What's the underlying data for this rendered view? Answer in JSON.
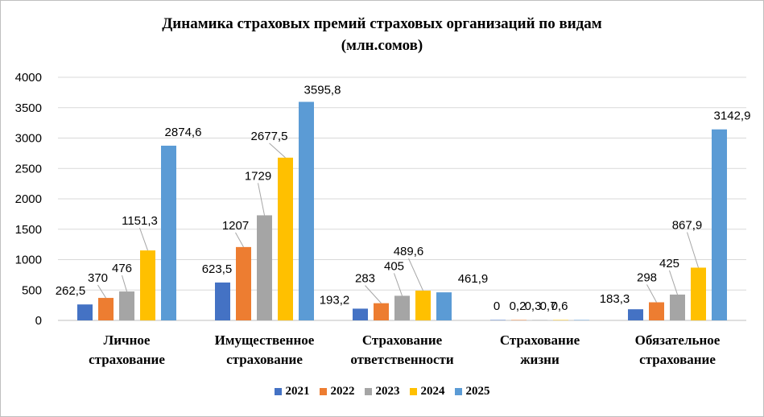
{
  "chart_data": {
    "type": "bar",
    "title": "Динамика страховых премий страховых организаций по видам",
    "subtitle": "(млн.сомов)",
    "categories": [
      [
        "Личное",
        "страхование"
      ],
      [
        "Имущественное",
        "страхование"
      ],
      [
        "Страхование",
        "ответственности"
      ],
      [
        "Страхование",
        "жизни"
      ],
      [
        "Обязательное",
        "страхование"
      ]
    ],
    "series": [
      {
        "name": "2021",
        "color": "#4472c4",
        "values": [
          262.5,
          623.5,
          193.2,
          0,
          183.3
        ],
        "labels": [
          "262,5",
          "623,5",
          "193,2",
          "0",
          "183,3"
        ]
      },
      {
        "name": "2022",
        "color": "#ed7d31",
        "values": [
          370,
          1207,
          283,
          0.2,
          298
        ],
        "labels": [
          "370",
          "1207",
          "283",
          "0,2",
          "298"
        ]
      },
      {
        "name": "2023",
        "color": "#a5a5a5",
        "values": [
          476,
          1729,
          405,
          0.3,
          425
        ],
        "labels": [
          "476",
          "1729",
          "405",
          "0,3",
          "425"
        ]
      },
      {
        "name": "2024",
        "color": "#ffc000",
        "values": [
          1151.3,
          2677.5,
          489.6,
          0.7,
          867.9
        ],
        "labels": [
          "1151,3",
          "2677,5",
          "489,6",
          "0,7",
          "867,9"
        ]
      },
      {
        "name": "2025",
        "color": "#5b9bd5",
        "values": [
          2874.6,
          3595.8,
          461.9,
          0.6,
          3142.9
        ],
        "labels": [
          "2874,6",
          "3595,8",
          "461,9",
          "0,6",
          "3142,9"
        ]
      }
    ],
    "ylim": [
      0,
      4000
    ],
    "yticks": [
      "0",
      "500",
      "1000",
      "1500",
      "2000",
      "2500",
      "3000",
      "3500",
      "4000"
    ],
    "grid": true,
    "legend_position": "bottom"
  }
}
